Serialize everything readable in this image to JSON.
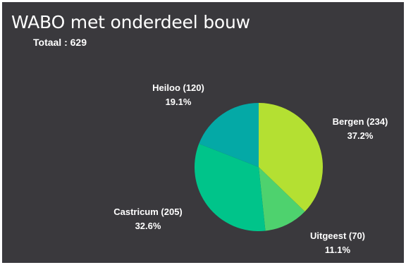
{
  "header": {
    "title": "WABO met onderdeel bouw",
    "total_label": "Totaal :",
    "total_value": "629"
  },
  "chart_data": {
    "type": "pie",
    "title": "WABO met onderdeel bouw",
    "total": 629,
    "slices": [
      {
        "label": "Bergen (234)",
        "category": "Bergen",
        "value": 234,
        "percent": "37.2%",
        "color": "#b4e032"
      },
      {
        "label": "Uitgeest (70)",
        "category": "Uitgeest",
        "value": 70,
        "percent": "11.1%",
        "color": "#4ed26e"
      },
      {
        "label": "Castricum (205)",
        "category": "Castricum",
        "value": 205,
        "percent": "32.6%",
        "color": "#00c48a"
      },
      {
        "label": "Heiloo (120)",
        "category": "Heiloo",
        "value": 120,
        "percent": "19.1%",
        "color": "#04a9a6"
      }
    ]
  }
}
